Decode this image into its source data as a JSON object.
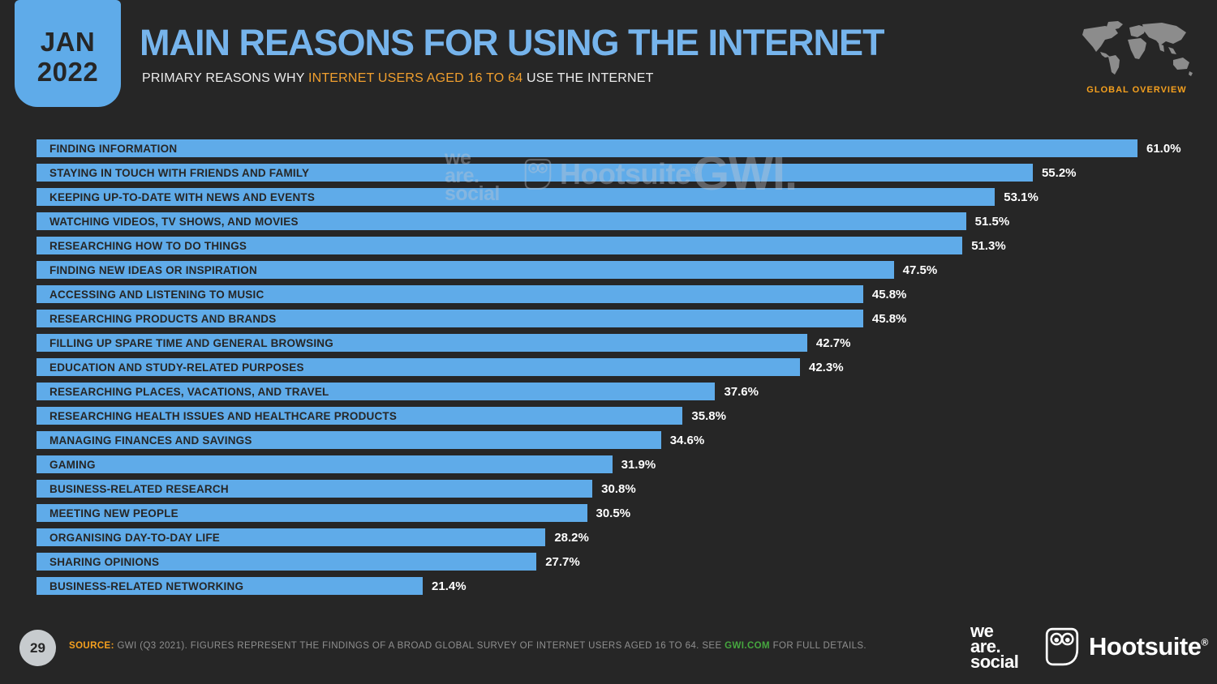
{
  "page": {
    "background": "#262626"
  },
  "header": {
    "badge": {
      "month": "JAN",
      "year": "2022"
    },
    "title": "MAIN REASONS FOR USING THE INTERNET",
    "subtitle_prefix": "PRIMARY REASONS WHY ",
    "subtitle_highlight": "INTERNET USERS AGED 16 TO 64",
    "subtitle_suffix": " USE THE INTERNET",
    "overview_label": "GLOBAL OVERVIEW"
  },
  "chart_data": {
    "type": "bar",
    "orientation": "horizontal",
    "title": "MAIN REASONS FOR USING THE INTERNET",
    "xlim": [
      0,
      61
    ],
    "grid": false,
    "legend": "none",
    "bar_color": "#5fabe9",
    "categories": [
      "FINDING INFORMATION",
      "STAYING IN TOUCH WITH FRIENDS AND FAMILY",
      "KEEPING UP-TO-DATE WITH NEWS AND EVENTS",
      "WATCHING VIDEOS, TV SHOWS, AND MOVIES",
      "RESEARCHING HOW TO DO THINGS",
      "FINDING NEW IDEAS OR INSPIRATION",
      "ACCESSING AND LISTENING TO MUSIC",
      "RESEARCHING PRODUCTS AND BRANDS",
      "FILLING UP SPARE TIME AND GENERAL BROWSING",
      "EDUCATION AND STUDY-RELATED PURPOSES",
      "RESEARCHING PLACES, VACATIONS, AND TRAVEL",
      "RESEARCHING HEALTH ISSUES AND HEALTHCARE PRODUCTS",
      "MANAGING FINANCES AND SAVINGS",
      "GAMING",
      "BUSINESS-RELATED RESEARCH",
      "MEETING NEW PEOPLE",
      "ORGANISING DAY-TO-DAY LIFE",
      "SHARING OPINIONS",
      "BUSINESS-RELATED NETWORKING"
    ],
    "values": [
      61.0,
      55.2,
      53.1,
      51.5,
      51.3,
      47.5,
      45.8,
      45.8,
      42.7,
      42.3,
      37.6,
      35.8,
      34.6,
      31.9,
      30.8,
      30.5,
      28.2,
      27.7,
      21.4
    ],
    "value_labels": [
      "61.0%",
      "55.2%",
      "53.1%",
      "51.5%",
      "51.3%",
      "47.5%",
      "45.8%",
      "45.8%",
      "42.7%",
      "42.3%",
      "37.6%",
      "35.8%",
      "34.6%",
      "31.9%",
      "30.8%",
      "30.5%",
      "28.2%",
      "27.7%",
      "21.4%"
    ]
  },
  "watermarks": {
    "we_are_social_lines": [
      "we",
      "are.",
      "social"
    ],
    "hootsuite": "Hootsuite",
    "hootsuite_reg": "®",
    "gwi": "GWI."
  },
  "footer": {
    "page_number": "29",
    "source_label": "SOURCE:",
    "source_text_1": " GWI (Q3 2021). FIGURES REPRESENT THE FINDINGS OF A BROAD GLOBAL SURVEY OF INTERNET USERS AGED 16 TO 64. SEE ",
    "source_link": "GWI.COM",
    "source_text_2": " FOR FULL DETAILS.",
    "wearesocial_lines": [
      "we",
      "are.",
      "social"
    ],
    "hootsuite": "Hootsuite",
    "hootsuite_reg": "®"
  },
  "colors": {
    "background": "#262626",
    "bar_blue": "#5fabe9",
    "title_blue": "#76b4ec",
    "accent_orange": "#f5a01e",
    "link_green": "#46a73f",
    "value_white": "#ffffff",
    "bar_label_dark": "#262626",
    "footer_gray": "#8f8f8f"
  }
}
